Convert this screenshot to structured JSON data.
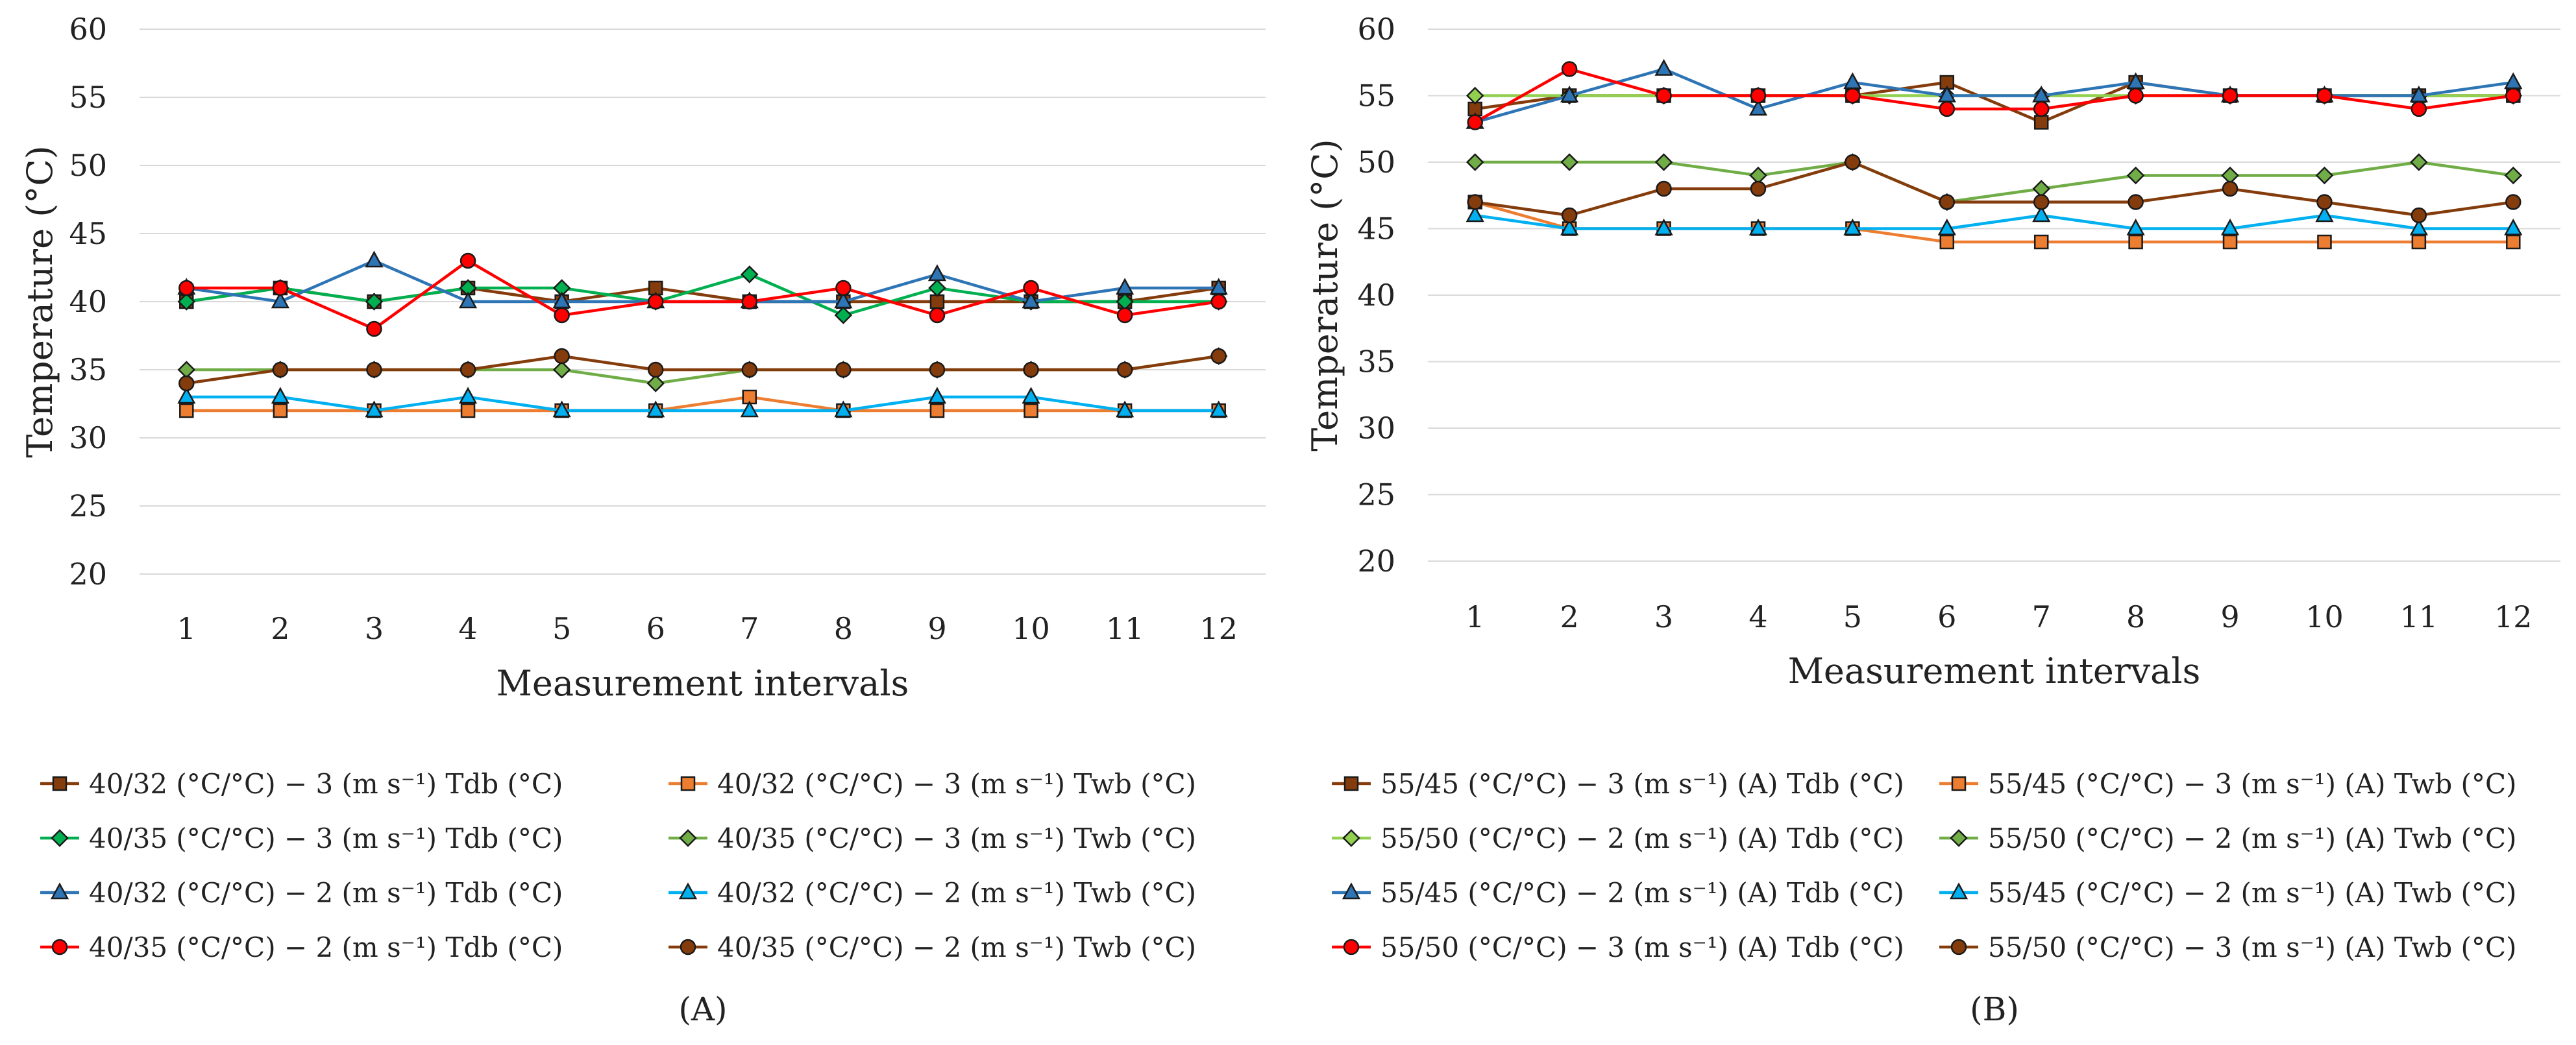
{
  "chart_data": [
    {
      "type": "line",
      "caption": "(A)",
      "xlabel": "Measurement intervals",
      "ylabel": "Temperature (°C)",
      "x": [
        1,
        2,
        3,
        4,
        5,
        6,
        7,
        8,
        9,
        10,
        11,
        12
      ],
      "x_tick_labels": [
        "1",
        "2",
        "3",
        "4",
        "5",
        "6",
        "7",
        "8",
        "9",
        "10",
        "11",
        "12"
      ],
      "ylim": [
        20,
        60
      ],
      "y_ticks": [
        20,
        25,
        30,
        35,
        40,
        45,
        50,
        55,
        60
      ],
      "y_tick_labels": [
        "20",
        "25",
        "30",
        "35",
        "40",
        "45",
        "50",
        "55",
        "60"
      ],
      "grid": true,
      "legend_position": "bottom",
      "series": [
        {
          "name": "40/32 (°C/°C) − 3 (m s⁻¹) Tdb (°C)",
          "color": "#843c0c",
          "marker": "square",
          "values": [
            40,
            41,
            40,
            41,
            40,
            41,
            40,
            40,
            40,
            40,
            40,
            41
          ]
        },
        {
          "name": "40/32 (°C/°C) − 3 (m s⁻¹) Twb (°C)",
          "color": "#ed7d31",
          "marker": "square",
          "values": [
            32,
            32,
            32,
            32,
            32,
            32,
            33,
            32,
            32,
            32,
            32,
            32
          ]
        },
        {
          "name": "40/35 (°C/°C) − 3 (m s⁻¹) Tdb (°C)",
          "color": "#00b050",
          "marker": "diamond",
          "values": [
            40,
            41,
            40,
            41,
            41,
            40,
            42,
            39,
            41,
            40,
            40,
            40
          ]
        },
        {
          "name": "40/35 (°C/°C) − 3 (m s⁻¹) Twb (°C)",
          "color": "#70ad47",
          "marker": "diamond",
          "values": [
            35,
            35,
            35,
            35,
            35,
            34,
            35,
            35,
            35,
            35,
            35,
            36
          ]
        },
        {
          "name": "40/32 (°C/°C) − 2 (m s⁻¹) Tdb (°C)",
          "color": "#2e75b6",
          "marker": "triangle",
          "values": [
            41,
            40,
            43,
            40,
            40,
            40,
            40,
            40,
            42,
            40,
            41,
            41
          ]
        },
        {
          "name": "40/32 (°C/°C) − 2 (m s⁻¹) Twb (°C)",
          "color": "#00b0f0",
          "marker": "triangle",
          "values": [
            33,
            33,
            32,
            33,
            32,
            32,
            32,
            32,
            33,
            33,
            32,
            32
          ]
        },
        {
          "name": "40/35 (°C/°C) − 2 (m s⁻¹) Tdb (°C)",
          "color": "#ff0000",
          "marker": "circle",
          "values": [
            41,
            41,
            38,
            43,
            39,
            40,
            40,
            41,
            39,
            41,
            39,
            40
          ]
        },
        {
          "name": "40/35 (°C/°C) − 2 (m s⁻¹) Twb (°C)",
          "color": "#843c0c",
          "marker": "circle",
          "values": [
            34,
            35,
            35,
            35,
            36,
            35,
            35,
            35,
            35,
            35,
            35,
            36
          ]
        }
      ]
    },
    {
      "type": "line",
      "caption": "(B)",
      "xlabel": "Measurement intervals",
      "ylabel": "Temperature (°C)",
      "x": [
        1,
        2,
        3,
        4,
        5,
        6,
        7,
        8,
        9,
        10,
        11,
        12
      ],
      "x_tick_labels": [
        "1",
        "2",
        "3",
        "4",
        "5",
        "6",
        "7",
        "8",
        "9",
        "10",
        "11",
        "12"
      ],
      "ylim": [
        20,
        60
      ],
      "y_ticks": [
        20,
        25,
        30,
        35,
        40,
        45,
        50,
        55,
        60
      ],
      "y_tick_labels": [
        "20",
        "25",
        "30",
        "35",
        "40",
        "45",
        "50",
        "55",
        "60"
      ],
      "grid": true,
      "legend_position": "bottom",
      "series": [
        {
          "name": "55/45 (°C/°C) − 3 (m s⁻¹) (A) Tdb (°C)",
          "color": "#843c0c",
          "marker": "square",
          "values": [
            54,
            55,
            55,
            55,
            55,
            56,
            53,
            56,
            55,
            55,
            55,
            55
          ]
        },
        {
          "name": "55/45 (°C/°C) − 3 (m s⁻¹) (A) Twb (°C)",
          "color": "#ed7d31",
          "marker": "square",
          "values": [
            47,
            45,
            45,
            45,
            45,
            44,
            44,
            44,
            44,
            44,
            44,
            44
          ]
        },
        {
          "name": "55/50 (°C/°C) − 2 (m s⁻¹) (A) Tdb (°C)",
          "color": "#92d050",
          "marker": "diamond",
          "values": [
            55,
            55,
            55,
            55,
            55,
            55,
            55,
            55,
            55,
            55,
            55,
            55
          ]
        },
        {
          "name": "55/50 (°C/°C) − 2 (m s⁻¹) (A) Twb (°C)",
          "color": "#70ad47",
          "marker": "diamond",
          "values": [
            50,
            50,
            50,
            49,
            50,
            47,
            48,
            49,
            49,
            49,
            50,
            49
          ]
        },
        {
          "name": "55/45 (°C/°C) − 2 (m s⁻¹) (A) Tdb (°C)",
          "color": "#2e75b6",
          "marker": "triangle",
          "values": [
            53,
            55,
            57,
            54,
            56,
            55,
            55,
            56,
            55,
            55,
            55,
            56
          ]
        },
        {
          "name": "55/45 (°C/°C) − 2 (m s⁻¹) (A) Twb (°C)",
          "color": "#00b0f0",
          "marker": "triangle",
          "values": [
            46,
            45,
            45,
            45,
            45,
            45,
            46,
            45,
            45,
            46,
            45,
            45
          ]
        },
        {
          "name": "55/50 (°C/°C) − 3 (m s⁻¹) (A) Tdb (°C)",
          "color": "#ff0000",
          "marker": "circle",
          "values": [
            53,
            57,
            55,
            55,
            55,
            54,
            54,
            55,
            55,
            55,
            54,
            55
          ]
        },
        {
          "name": "55/50 (°C/°C) − 3 (m s⁻¹) (A) Twb (°C)",
          "color": "#843c0c",
          "marker": "circle",
          "values": [
            47,
            46,
            48,
            48,
            50,
            47,
            47,
            47,
            48,
            47,
            46,
            47
          ]
        }
      ]
    }
  ]
}
